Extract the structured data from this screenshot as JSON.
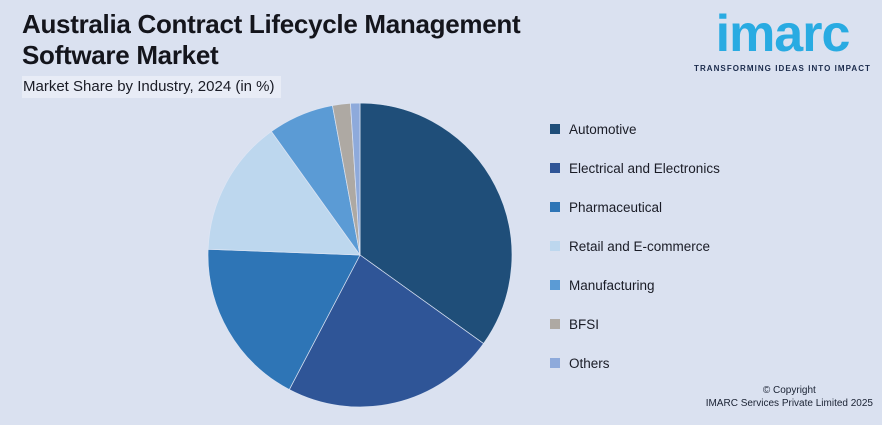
{
  "header": {
    "title_line1": "Australia Contract Lifecycle Management",
    "title_line2": "Software Market",
    "subtitle": "Market Share by Industry, 2024 (in %)"
  },
  "logo": {
    "wordmark": "imarc",
    "tagline": "TRANSFORMING IDEAS INTO IMPACT",
    "brand_color": "#29ABE2",
    "tagline_color": "#1B2B4C"
  },
  "footer": {
    "copyright_line1": "© Copyright",
    "copyright_line2": "IMARC Services Private Limited 2025"
  },
  "colors": {
    "background": "#DAE1F0",
    "heading_text": "#14151C",
    "legend_text": "#1A1C26"
  },
  "chart_data": {
    "type": "pie",
    "title": "Australia Contract Lifecycle Management Software Market",
    "subtitle": "Market Share by Industry, 2024 (in %)",
    "unit": "%",
    "categories": [
      "Automotive",
      "Electrical and Electronics",
      "Pharmaceutical",
      "Retail and E-commerce",
      "Manufacturing",
      "BFSI",
      "Others"
    ],
    "values": [
      34.9,
      22.8,
      17.9,
      14.5,
      7.0,
      1.9,
      1.0
    ],
    "colors": [
      "#1F4E79",
      "#2F5597",
      "#2E75B6",
      "#BDD7EE",
      "#5B9BD5",
      "#AEA9A3",
      "#8EAADB"
    ],
    "start_angle_deg": 0,
    "direction": "clockwise",
    "legend_position": "right",
    "data_labels": false
  }
}
